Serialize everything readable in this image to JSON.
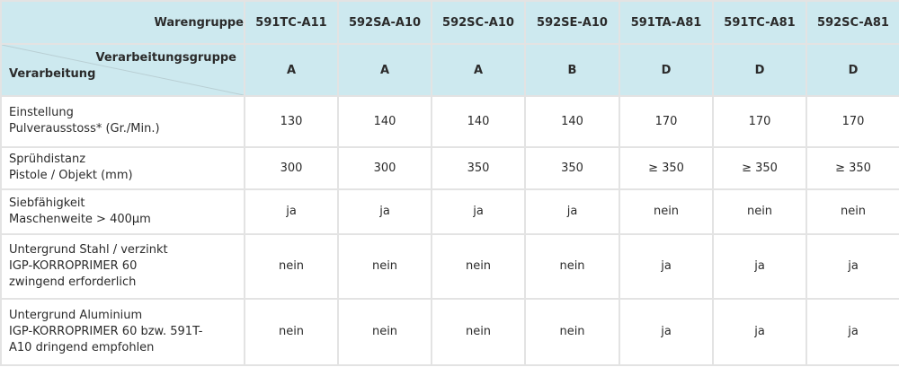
{
  "table": {
    "header_label": "Warengruppe",
    "corner_top_label": "Verarbeitungsgruppe",
    "corner_bottom_label": "Verarbeitung",
    "columns": [
      {
        "code": "591TC-A11",
        "group": "A"
      },
      {
        "code": "592SA-A10",
        "group": "A"
      },
      {
        "code": "592SC-A10",
        "group": "A"
      },
      {
        "code": "592SE-A10",
        "group": "B"
      },
      {
        "code": "591TA-A81",
        "group": "D"
      },
      {
        "code": "591TC-A81",
        "group": "D"
      },
      {
        "code": "592SC-A81",
        "group": "D"
      }
    ],
    "rows": [
      {
        "label_lines": [
          "Einstellung",
          "Pulverausstoss* (Gr./Min.)"
        ],
        "values": [
          "130",
          "140",
          "140",
          "140",
          "170",
          "170",
          "170"
        ]
      },
      {
        "label_lines": [
          "Sprühdistanz",
          "Pistole / Objekt (mm)"
        ],
        "values": [
          "300",
          "300",
          "350",
          "350",
          "≥ 350",
          "≥ 350",
          "≥ 350"
        ]
      },
      {
        "label_lines": [
          "Siebfähigkeit",
          "Maschenweite > 400µm"
        ],
        "values": [
          "ja",
          "ja",
          "ja",
          "ja",
          "nein",
          "nein",
          "nein"
        ]
      },
      {
        "label_lines": [
          "Untergrund Stahl / verzinkt",
          "IGP-KORROPRIMER 60",
          "zwingend erforderlich"
        ],
        "values": [
          "nein",
          "nein",
          "nein",
          "nein",
          "ja",
          "ja",
          "ja"
        ]
      },
      {
        "label_lines": [
          "Untergrund Aluminium",
          "IGP-KORROPRIMER 60 bzw. 591T-",
          "A10 dringend empfohlen"
        ],
        "values": [
          "nein",
          "nein",
          "nein",
          "nein",
          "ja",
          "ja",
          "ja"
        ]
      }
    ]
  }
}
